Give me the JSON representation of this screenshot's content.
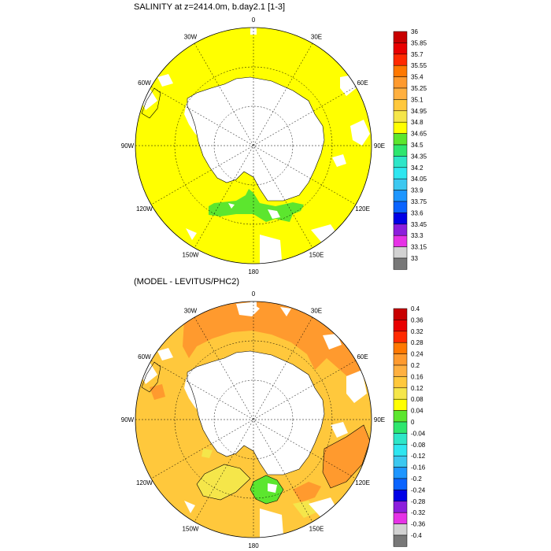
{
  "panels": [
    {
      "id": "top",
      "title": "SALINITY at z=2414.0m, b.day2.1 [1-3]",
      "longitude_labels": [
        "0",
        "30E",
        "60E",
        "90E",
        "120E",
        "150E",
        "180",
        "150W",
        "120W",
        "90W",
        "60W",
        "30W"
      ],
      "colorbar": {
        "labels": [
          "36",
          "35.85",
          "35.7",
          "35.55",
          "35.4",
          "35.25",
          "35.1",
          "34.95",
          "34.8",
          "34.65",
          "34.5",
          "34.35",
          "34.2",
          "34.05",
          "33.9",
          "33.75",
          "33.6",
          "33.45",
          "33.3",
          "33.15",
          "33"
        ],
        "colors": [
          "#c80000",
          "#e80000",
          "#ff2a00",
          "#ff7800",
          "#ff9a2e",
          "#ffb040",
          "#ffc83c",
          "#f5e64a",
          "#ffff00",
          "#5ce62e",
          "#2ee66e",
          "#2ee6c8",
          "#2ee6f0",
          "#3cc8f0",
          "#1e96ff",
          "#0a64ff",
          "#0000e6",
          "#8c1edc",
          "#e632e6",
          "#d2d2d2",
          "#787878"
        ]
      },
      "fill_colors": {
        "ocean": "#ffff00",
        "anomaly": "#5ce62e",
        "land": "#ffffff"
      }
    },
    {
      "id": "bottom",
      "title": "(MODEL - LEVITUS/PHC2)",
      "longitude_labels": [
        "0",
        "30E",
        "60E",
        "90E",
        "120E",
        "150E",
        "180",
        "150W",
        "120W",
        "90W",
        "60W",
        "30W"
      ],
      "colorbar": {
        "labels": [
          "0.4",
          "0.36",
          "0.32",
          "0.28",
          "0.24",
          "0.2",
          "0.16",
          "0.12",
          "0.08",
          "0.04",
          "0",
          "-0.04",
          "-0.08",
          "-0.12",
          "-0.16",
          "-0.2",
          "-0.24",
          "-0.28",
          "-0.32",
          "-0.36",
          "-0.4"
        ],
        "colors": [
          "#c80000",
          "#e80000",
          "#ff2a00",
          "#ff7800",
          "#ff9a2e",
          "#ffb040",
          "#ffc83c",
          "#f5e64a",
          "#ffff00",
          "#5ce62e",
          "#2ee66e",
          "#2ee6c8",
          "#2ee6f0",
          "#3cc8f0",
          "#1e96ff",
          "#0a64ff",
          "#0000e6",
          "#8c1edc",
          "#e632e6",
          "#d2d2d2",
          "#787878"
        ]
      },
      "fill_colors": {
        "ocean_main": "#ffc83c",
        "ocean_high": "#ff9a2e",
        "ocean_low": "#f5e64a",
        "anomaly": "#5ce62e",
        "land": "#ffffff"
      }
    }
  ]
}
